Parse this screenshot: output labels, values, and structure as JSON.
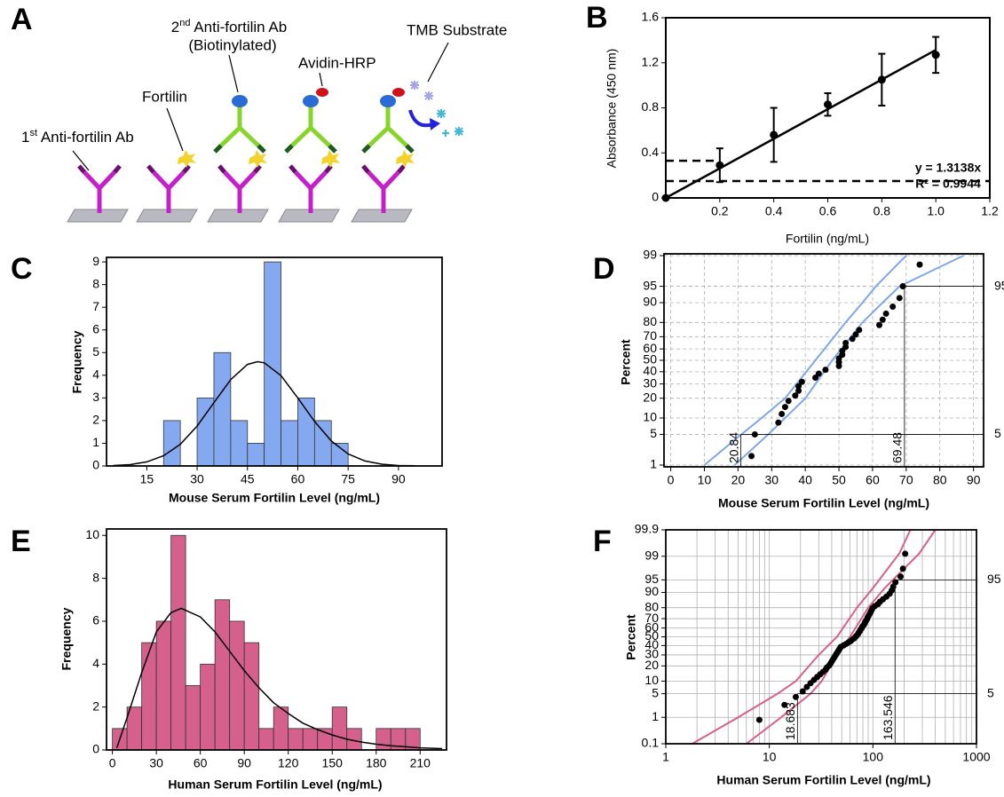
{
  "diagram": {
    "panel_label": "A",
    "labels": [
      {
        "base": "1",
        "sup": "st",
        "rest": " Anti-fortilin Ab"
      },
      "Fortilin",
      {
        "base": "2",
        "sup": "nd",
        "rest": " Anti-fortilin Ab"
      },
      "(Biotinylated)",
      "Avidin-HRP",
      "TMB Substrate"
    ]
  },
  "chart_data": [
    {
      "type": "scatter",
      "panel_label": "B",
      "x_label": "Fortilin (ng/mL)",
      "y_label": "Absorbance (450 nm)",
      "x": [
        0,
        0.2,
        0.4,
        0.6,
        0.8,
        1.0
      ],
      "values": [
        0,
        0.29,
        0.56,
        0.83,
        1.05,
        1.27
      ],
      "errors": [
        null,
        0.15,
        0.24,
        0.1,
        0.23,
        0.16
      ],
      "color": "#000000",
      "fit_line": {
        "x": [
          0,
          1.0
        ],
        "y": [
          0,
          1.3138
        ]
      },
      "dashed_lines": [
        {
          "y": 0.33,
          "x_to": 0.2
        },
        {
          "y": 0.15,
          "x_to": 1.2
        }
      ],
      "annotations": [
        "y = 1.3138x",
        "R² = 0.9944"
      ],
      "xlim": [
        0,
        1.2
      ],
      "ylim": [
        0,
        1.6
      ],
      "xticks": [
        0.2,
        0.4,
        0.6,
        0.8,
        {
          "value": 1,
          "label": "1.0"
        },
        1.2
      ],
      "yticks": [
        0,
        0.4,
        0.8,
        1.2,
        1.6
      ],
      "grid": false
    },
    {
      "type": "histogram",
      "panel_label": "C",
      "x_label": "Mouse Serum Fortilin Level (ng/mL)",
      "y_label": "Frequency",
      "bins": [
        20,
        25,
        30,
        35,
        40,
        45,
        50,
        55,
        60,
        65,
        70,
        75
      ],
      "counts": [
        2,
        0,
        3,
        5,
        2,
        1,
        9,
        2,
        3,
        2,
        1
      ],
      "color": "#84a9f0",
      "edge_color": "#333333",
      "fit_curve": {
        "x": [
          5,
          10,
          15,
          20,
          25,
          30,
          35,
          40,
          45,
          48,
          50,
          55,
          60,
          65,
          70,
          75,
          80,
          85,
          90,
          95
        ],
        "y": [
          0.02,
          0.06,
          0.18,
          0.45,
          0.96,
          1.76,
          2.79,
          3.81,
          4.48,
          4.6,
          4.55,
          3.98,
          3.0,
          1.96,
          1.1,
          0.53,
          0.22,
          0.08,
          0.02,
          0.01
        ]
      },
      "xlim": [
        3,
        103
      ],
      "ylim": [
        0,
        9.2
      ],
      "xticks": [
        15,
        30,
        45,
        60,
        75,
        90
      ],
      "yticks": [
        0,
        1,
        2,
        3,
        4,
        5,
        6,
        7,
        8,
        9
      ],
      "grid": false
    },
    {
      "type": "probability",
      "panel_label": "D",
      "x_label": "Mouse Serum Fortilin Level (ng/mL)",
      "y_label": "Percent",
      "yscale": "probability",
      "color": "#000000",
      "ci_color": "#7ea7ea",
      "points": {
        "x": [
          24,
          25,
          32,
          33,
          34,
          35,
          37,
          38,
          38,
          39,
          43,
          44,
          46,
          50,
          50,
          50,
          51,
          51,
          52,
          52,
          54,
          55,
          56,
          62,
          63,
          64,
          66,
          68,
          69,
          74
        ],
        "percent": [
          1.67,
          5,
          8.33,
          11.67,
          15,
          18.33,
          21.67,
          25,
          28.33,
          31.67,
          35,
          38.33,
          41.67,
          45,
          48.33,
          51.67,
          55,
          58.33,
          61.67,
          65,
          68.33,
          71.67,
          75,
          78.33,
          81.67,
          85,
          88.33,
          91.67,
          95,
          98.33
        ]
      },
      "ci_bands": [
        {
          "x": [
            10,
            21,
            27,
            34,
            43,
            52,
            57,
            61,
            70
          ],
          "percent": [
            1,
            5,
            10,
            20,
            50,
            80,
            90,
            95,
            99
          ]
        },
        {
          "x": [
            19,
            29,
            34,
            40,
            48,
            57,
            63,
            68,
            87
          ],
          "percent": [
            1,
            5,
            10,
            20,
            50,
            80,
            90,
            95,
            99
          ]
        }
      ],
      "ref_lines": [
        {
          "percent": 95,
          "x": 69.48
        },
        {
          "percent": 5,
          "x": 20.84
        }
      ],
      "xlim": [
        -2,
        93
      ],
      "ylim": [
        0.9,
        99.1
      ],
      "xticks": [
        0,
        10,
        20,
        30,
        40,
        50,
        60,
        70,
        80,
        90
      ],
      "yticks": [
        1,
        5,
        10,
        20,
        30,
        40,
        50,
        60,
        70,
        80,
        90,
        95,
        99
      ],
      "grid": true,
      "grid_style": "dashed"
    },
    {
      "type": "histogram",
      "panel_label": "E",
      "x_label": "Human Serum Fortilin Level (ng/mL)",
      "y_label": "Frequency",
      "bins": [
        0,
        10,
        20,
        30,
        40,
        50,
        60,
        70,
        80,
        90,
        100,
        110,
        120,
        130,
        140,
        150,
        160,
        170,
        180,
        190,
        200,
        210
      ],
      "counts": [
        1,
        2,
        5,
        6,
        10,
        3,
        4,
        7,
        6,
        5,
        1,
        2,
        1,
        1,
        1,
        2,
        1,
        0,
        1,
        1,
        1
      ],
      "color": "#d6608c",
      "edge_color": "#333333",
      "fit_curve": {
        "x": [
          3,
          10,
          20,
          30,
          40,
          47,
          60,
          70,
          80,
          90,
          100,
          110,
          120,
          130,
          140,
          150,
          160,
          170,
          180,
          190,
          200,
          210,
          225
        ],
        "y": [
          0.1,
          1.5,
          3.6,
          5.5,
          6.4,
          6.6,
          6.2,
          5.5,
          4.6,
          3.7,
          2.9,
          2.2,
          1.7,
          1.25,
          0.95,
          0.7,
          0.5,
          0.37,
          0.27,
          0.2,
          0.15,
          0.1,
          0.06
        ]
      },
      "xlim": [
        -4,
        228
      ],
      "ylim": [
        0,
        10.3
      ],
      "xticks": [
        0,
        30,
        60,
        90,
        120,
        150,
        180,
        210
      ],
      "yticks": [
        0,
        2,
        4,
        6,
        8,
        10
      ],
      "grid": false
    },
    {
      "type": "probability",
      "panel_label": "F",
      "x_label": "Human Serum Fortilin Level (ng/mL)",
      "y_label": "Percent",
      "xscale": "log",
      "yscale": "probability",
      "color": "#000000",
      "ci_color": "#d8608a",
      "points": {
        "x": [
          8,
          14,
          18,
          21,
          23,
          25,
          27,
          29,
          31,
          33,
          35,
          36,
          38,
          39,
          40,
          41,
          42,
          43,
          44,
          45,
          46,
          47,
          48,
          49,
          52,
          55,
          58,
          61,
          63,
          66,
          68,
          70,
          72,
          73,
          75,
          76,
          78,
          79,
          81,
          83,
          84,
          86,
          88,
          89,
          91,
          93,
          95,
          97,
          99,
          104,
          112,
          117,
          125,
          135,
          145,
          152,
          157,
          165,
          185,
          195,
          205
        ],
        "percent": [
          0.82,
          2.46,
          4.1,
          5.74,
          7.38,
          9.02,
          10.66,
          12.3,
          13.93,
          15.57,
          17.21,
          18.85,
          20.49,
          22.13,
          23.77,
          25.41,
          27.05,
          28.69,
          30.33,
          31.97,
          33.61,
          35.25,
          36.89,
          38.52,
          40.16,
          41.8,
          43.44,
          45.08,
          46.72,
          48.36,
          50.0,
          51.64,
          53.28,
          54.92,
          56.56,
          58.2,
          59.84,
          61.48,
          63.11,
          64.75,
          66.39,
          68.03,
          69.67,
          71.31,
          72.95,
          74.59,
          76.23,
          77.87,
          79.51,
          81.15,
          82.79,
          84.43,
          86.07,
          87.7,
          89.34,
          90.98,
          92.62,
          94.26,
          95.9,
          97.54,
          99.18
        ]
      },
      "ci_bands": [
        {
          "x": [
            1.8,
            5,
            12,
            18,
            30,
            45,
            70,
            100,
            180,
            230
          ],
          "percent": [
            0.1,
            1,
            5,
            10,
            30,
            50,
            80,
            92,
            99.2,
            99.9
          ]
        },
        {
          "x": [
            6,
            13,
            25,
            32,
            45,
            60,
            90,
            130,
            280,
            400
          ],
          "percent": [
            0.1,
            1,
            5,
            10,
            30,
            50,
            80,
            92,
            99.2,
            99.9
          ]
        }
      ],
      "ref_lines": [
        {
          "percent": 95,
          "x": 163.546
        },
        {
          "percent": 5,
          "x": 18.683
        }
      ],
      "x_minor_grid": [
        2,
        3,
        4,
        5,
        6,
        7,
        8,
        9,
        20,
        30,
        40,
        50,
        60,
        70,
        80,
        90,
        200,
        300,
        400,
        500,
        600,
        700,
        800,
        900
      ],
      "xlim": [
        1,
        1000
      ],
      "ylim": [
        0.1,
        99.9
      ],
      "xticks": [
        1,
        10,
        100,
        1000
      ],
      "yticks": [
        0.1,
        1,
        5,
        10,
        20,
        30,
        40,
        50,
        60,
        70,
        80,
        90,
        95,
        99,
        99.9
      ],
      "grid": true,
      "grid_style": "solid"
    }
  ]
}
